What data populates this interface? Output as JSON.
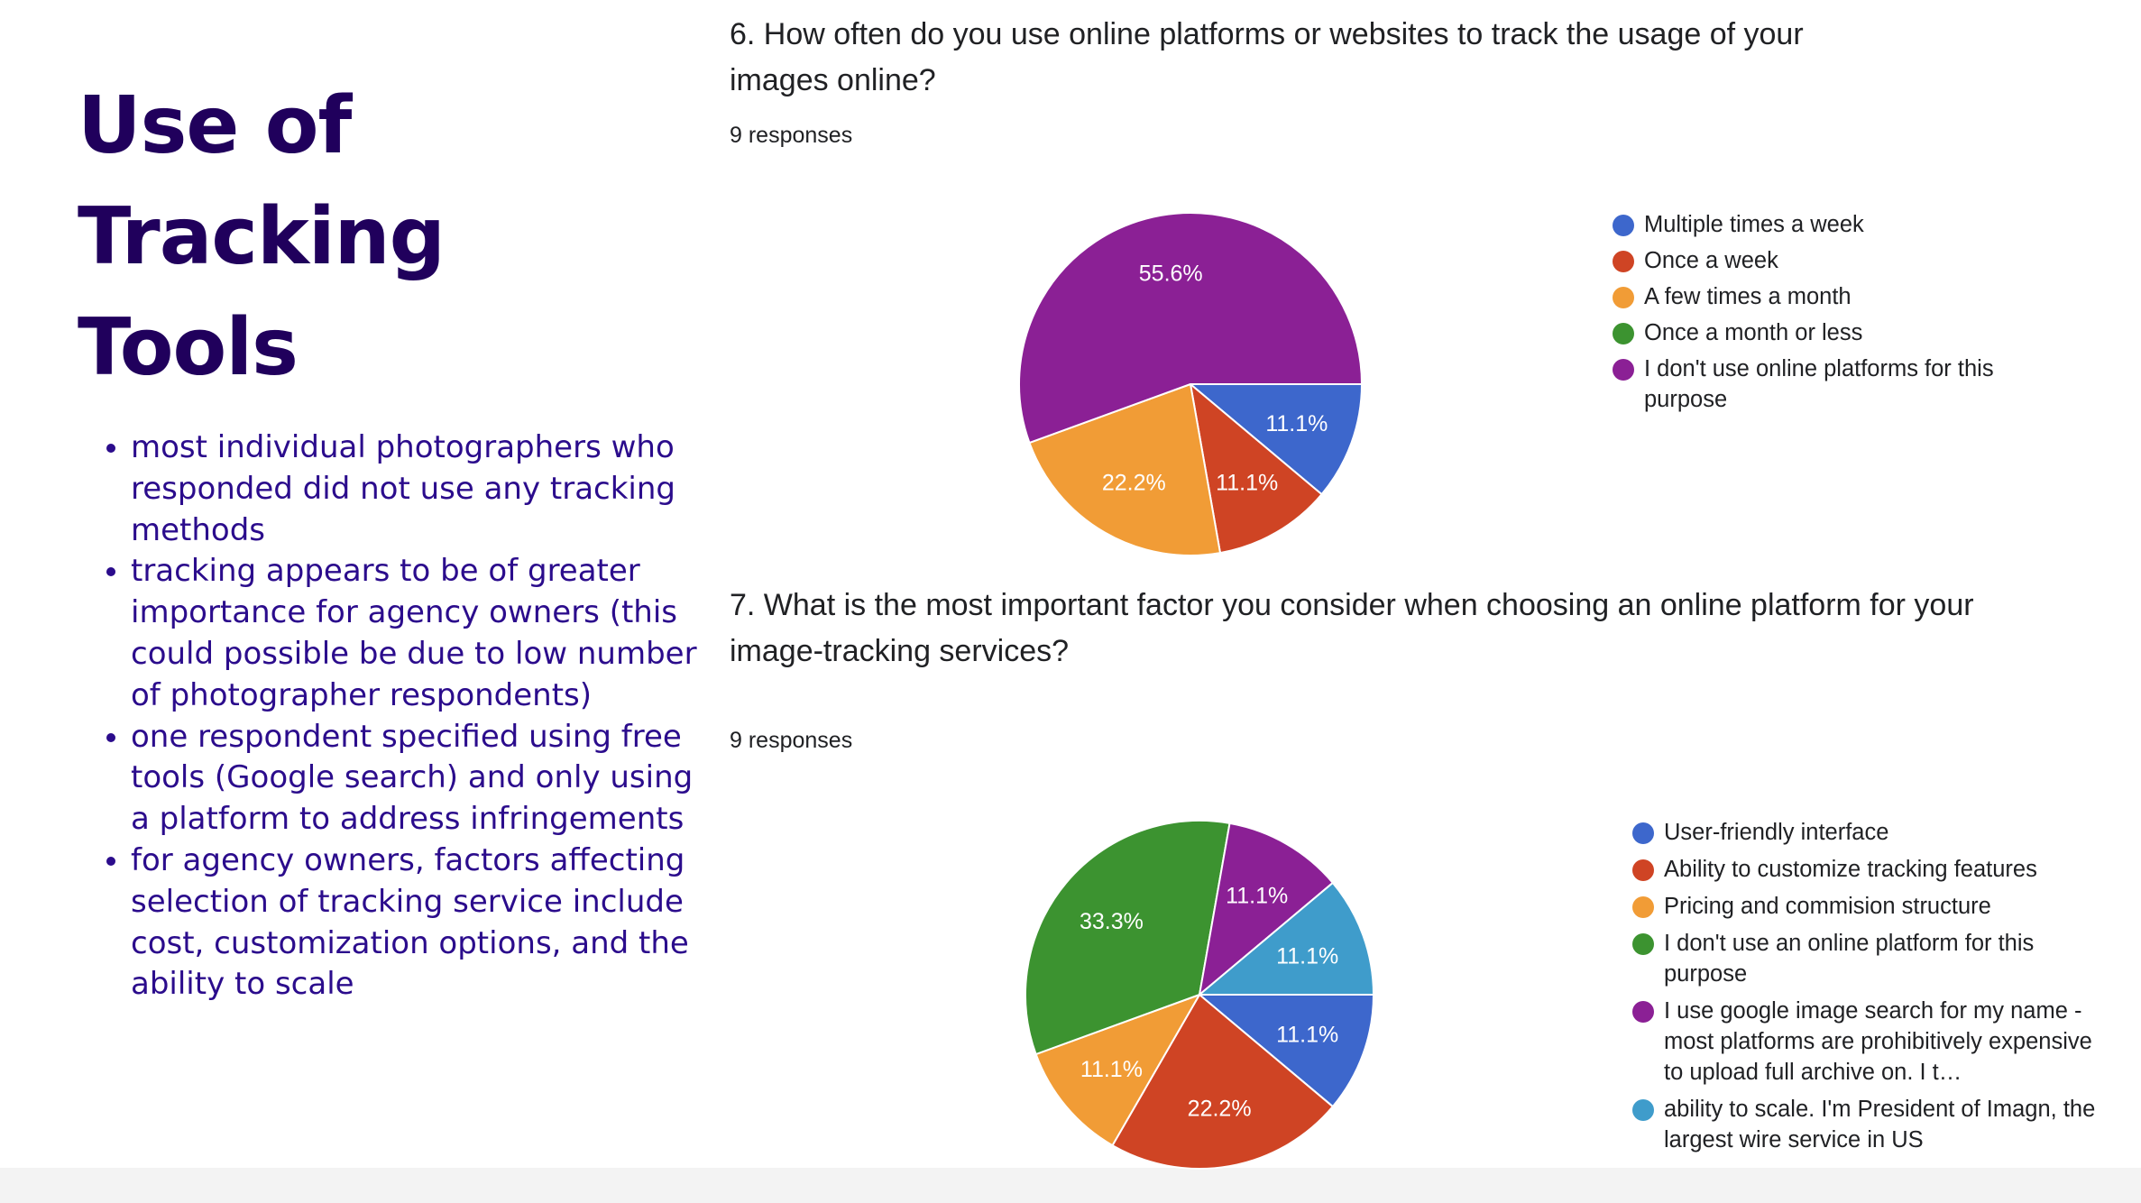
{
  "page": {
    "title_lines": [
      "Use of",
      "Tracking",
      "Tools"
    ],
    "bullets": [
      "most individual photographers who responded did not use any tracking methods",
      "tracking appears to be of greater importance for agency owners (this could possible be due to low number of photographer respondents)",
      "one respondent specified using free tools (Google search) and only using a platform to address infringements",
      "for agency owners, factors affecting selection of tracking service include cost, customization options, and the ability to scale"
    ]
  },
  "chart_data": [
    {
      "type": "pie",
      "title": "6. How often do you use online platforms or websites to track the usage of your images online?",
      "responses": "9 responses",
      "categories": [
        "Multiple times a week",
        "Once a week",
        "A few times a month",
        "Once a month or less",
        "I don't use online platforms for this purpose"
      ],
      "values": [
        1,
        1,
        2,
        0,
        5
      ],
      "labels": [
        "11.1%",
        "11.1%",
        "22.2%",
        "",
        "55.6%"
      ],
      "colors": [
        "#3d67cc",
        "#cf4424",
        "#f19c36",
        "#3c9330",
        "#8b2095"
      ]
    },
    {
      "type": "pie",
      "title": "7. What is the most important factor you consider when choosing an online platform for your image-tracking services?",
      "responses": "9 responses",
      "categories": [
        "User-friendly interface",
        "Ability to customize tracking features",
        "Pricing and commision structure",
        "I don't use an online platform for this purpose",
        "I use google image search for my name - most platforms are prohibitively expensive to upload full archive on. I t…",
        "ability to scale. I'm President of Imagn, the largest wire service in US"
      ],
      "values": [
        1,
        2,
        1,
        3,
        1,
        1
      ],
      "labels": [
        "11.1%",
        "22.2%",
        "11.1%",
        "33.3%",
        "11.1%",
        "11.1%"
      ],
      "colors": [
        "#3d67cc",
        "#cf4424",
        "#f19c36",
        "#3c9330",
        "#8b2095",
        "#3f9ccb"
      ]
    }
  ]
}
